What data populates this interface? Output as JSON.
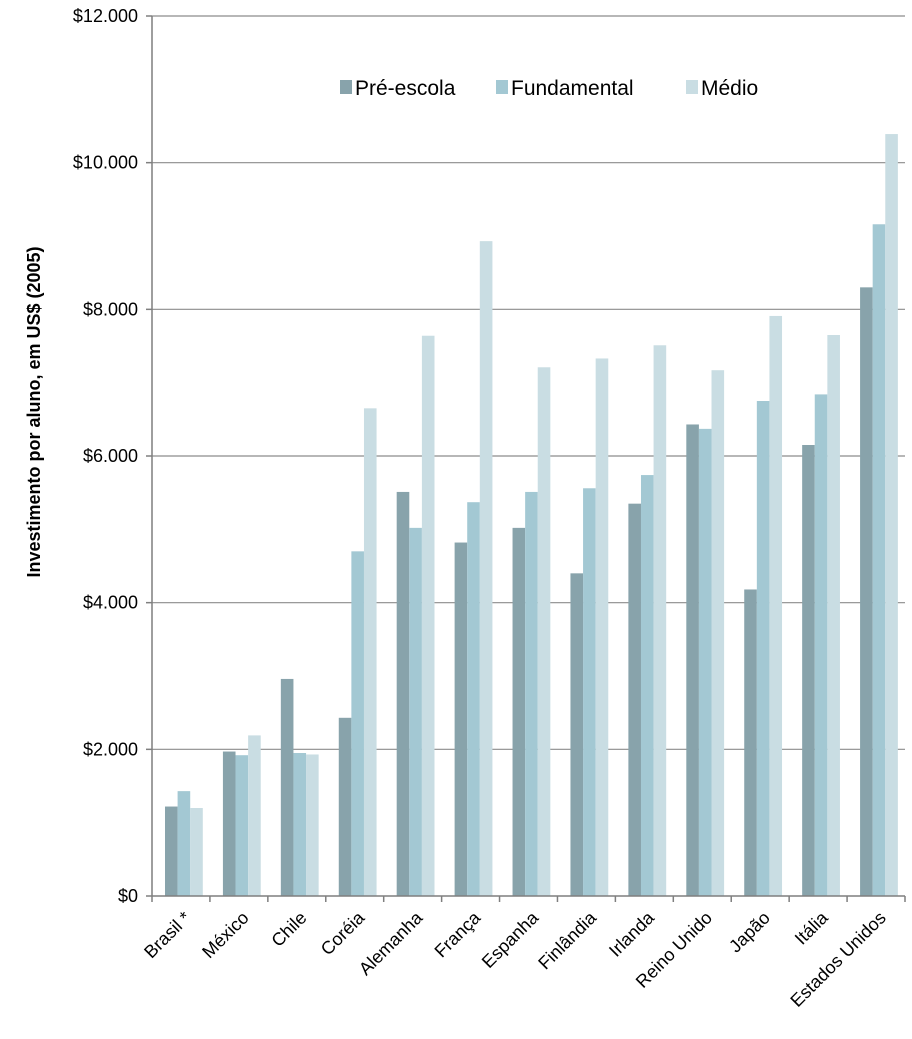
{
  "chart_data": {
    "type": "bar",
    "title": "",
    "xlabel": "",
    "ylabel": "Investimento por aluno, em US$ (2005)",
    "ylim": [
      0,
      12000
    ],
    "y_ticks": [
      0,
      2000,
      4000,
      6000,
      8000,
      10000,
      12000
    ],
    "y_tick_labels": [
      "$0",
      "$2.000",
      "$4.000",
      "$6.000",
      "$8.000",
      "$10.000",
      "$12.000"
    ],
    "grid": true,
    "legend_position": "top-center",
    "categories": [
      "Brasil *",
      "México",
      "Chile",
      "Coréia",
      "Alemanha",
      "França",
      "Espanha",
      "Finlândia",
      "Irlanda",
      "Reino Unido",
      "Japão",
      "Itália",
      "Estados Unidos"
    ],
    "series": [
      {
        "name": "Pré-escola",
        "color": "#88a3ab",
        "values": [
          1220,
          1970,
          2960,
          2430,
          5510,
          4820,
          5020,
          4400,
          5350,
          6430,
          4180,
          6150,
          8300
        ]
      },
      {
        "name": "Fundamental",
        "color": "#a3c8d3",
        "values": [
          1430,
          1920,
          1950,
          4700,
          5020,
          5370,
          5510,
          5560,
          5740,
          6370,
          6750,
          6840,
          9160
        ]
      },
      {
        "name": "Médio",
        "color": "#c9dde3",
        "values": [
          1200,
          2190,
          1930,
          6650,
          7640,
          8930,
          7210,
          7330,
          7510,
          7170,
          7910,
          7650,
          10390
        ]
      }
    ]
  }
}
